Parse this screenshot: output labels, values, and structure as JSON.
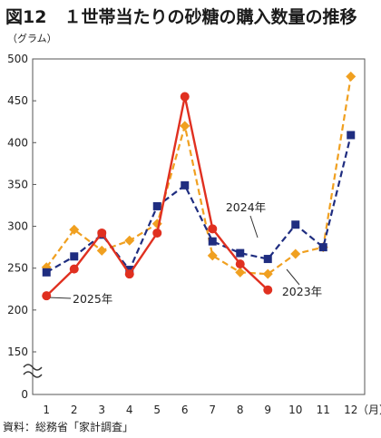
{
  "title": "図12　１世帯当たりの砂糖の購入数量の推移",
  "source": "資料：総務省「家計調査」",
  "chart_data": {
    "type": "line",
    "ylabel": "（グラム）",
    "xlabel": "（月）",
    "categories": [
      "1",
      "2",
      "3",
      "4",
      "5",
      "6",
      "7",
      "8",
      "9",
      "10",
      "11",
      "12"
    ],
    "y_ticks": [
      "0",
      "150",
      "200",
      "250",
      "300",
      "350",
      "400",
      "450",
      "500"
    ],
    "ylim": [
      150,
      500
    ],
    "axis_break": true,
    "grid": false,
    "series": [
      {
        "name": "2023年",
        "color": "#f0a020",
        "style": "dashed",
        "marker": "diamond",
        "values": [
          251,
          296,
          271,
          283,
          303,
          420,
          265,
          245,
          243,
          267,
          275,
          479
        ]
      },
      {
        "name": "2024年",
        "color": "#1f2d80",
        "style": "dashed",
        "marker": "square",
        "values": [
          245,
          264,
          290,
          248,
          324,
          349,
          282,
          268,
          261,
          302,
          275,
          409
        ]
      },
      {
        "name": "2025年",
        "color": "#e03020",
        "style": "solid",
        "marker": "circle",
        "values": [
          217,
          249,
          292,
          243,
          292,
          455,
          297,
          255,
          224,
          null,
          null,
          null
        ]
      }
    ]
  }
}
